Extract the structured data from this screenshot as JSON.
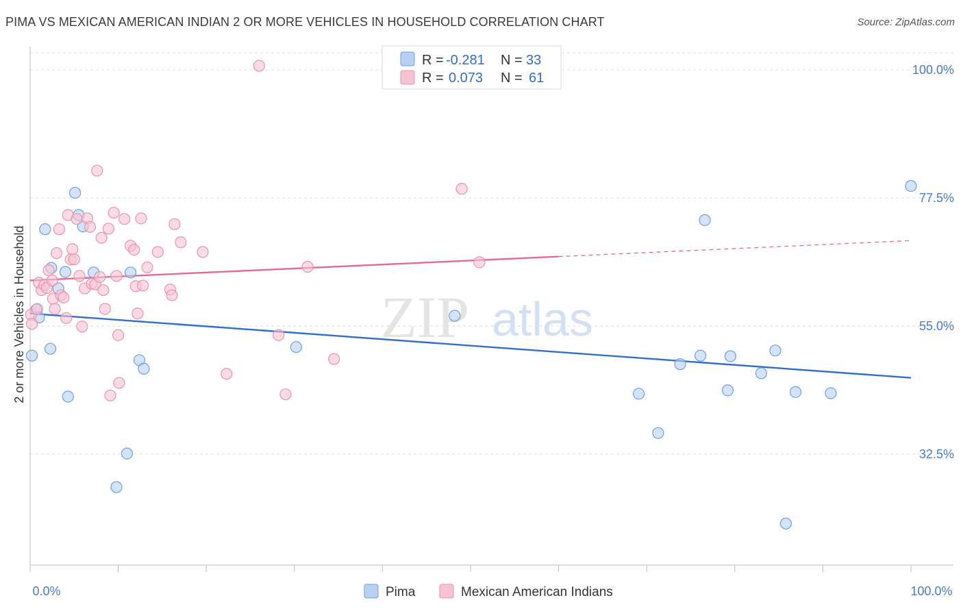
{
  "title": "PIMA VS MEXICAN AMERICAN INDIAN 2 OR MORE VEHICLES IN HOUSEHOLD CORRELATION CHART",
  "source": "Source: ZipAtlas.com",
  "watermark": {
    "zip": "ZIP",
    "atlas": "atlas"
  },
  "legend": {
    "r_label": "R =",
    "n_label": "N =",
    "rows": [
      {
        "r": "-0.281",
        "n": "33"
      },
      {
        "r": "0.073",
        "n": "61"
      }
    ]
  },
  "colors": {
    "pima_fill": "#b8d0f2",
    "pima_stroke": "#6f9ee0",
    "pima_line": "#2f6fc9",
    "mexican_fill": "#f7c3d2",
    "mexican_stroke": "#e893ad",
    "mexican_line": "#e26a95",
    "tick_label": "#4a7bc8",
    "grid": "#dddddd"
  },
  "chart_data": {
    "type": "scatter",
    "title": "PIMA VS MEXICAN AMERICAN INDIAN 2 OR MORE VEHICLES IN HOUSEHOLD CORRELATION CHART",
    "xlabel": "",
    "ylabel": "2 or more Vehicles in Household",
    "xlim": [
      0,
      100
    ],
    "ylim": [
      13,
      103
    ],
    "x_tick_labels": [
      "0.0%",
      "100.0%"
    ],
    "y_ticks": [
      32.5,
      55.0,
      77.5,
      100.0
    ],
    "y_tick_labels": [
      "32.5%",
      "55.0%",
      "77.5%",
      "100.0%"
    ],
    "grid": true,
    "legend_position": "bottom",
    "series": [
      {
        "name": "Pima",
        "r": -0.281,
        "n": 33,
        "trend": {
          "x": [
            0,
            100
          ],
          "y": [
            57.2,
            45.9
          ]
        },
        "points": [
          {
            "x": 0.2,
            "y": 49.8
          },
          {
            "x": 0.7,
            "y": 57.9
          },
          {
            "x": 1.0,
            "y": 56.5
          },
          {
            "x": 1.7,
            "y": 72.0
          },
          {
            "x": 2.3,
            "y": 51.0
          },
          {
            "x": 2.4,
            "y": 65.2
          },
          {
            "x": 3.2,
            "y": 61.6
          },
          {
            "x": 4.0,
            "y": 64.5
          },
          {
            "x": 4.3,
            "y": 42.6
          },
          {
            "x": 5.1,
            "y": 78.4
          },
          {
            "x": 5.5,
            "y": 74.5
          },
          {
            "x": 6.0,
            "y": 72.5
          },
          {
            "x": 7.2,
            "y": 64.4
          },
          {
            "x": 9.8,
            "y": 26.7
          },
          {
            "x": 11.0,
            "y": 32.6
          },
          {
            "x": 11.4,
            "y": 64.4
          },
          {
            "x": 12.4,
            "y": 49.0
          },
          {
            "x": 12.9,
            "y": 47.5
          },
          {
            "x": 30.2,
            "y": 51.3
          },
          {
            "x": 48.2,
            "y": 56.8
          },
          {
            "x": 69.1,
            "y": 43.1
          },
          {
            "x": 71.3,
            "y": 36.2
          },
          {
            "x": 73.8,
            "y": 48.3
          },
          {
            "x": 76.1,
            "y": 49.8
          },
          {
            "x": 76.6,
            "y": 73.6
          },
          {
            "x": 79.5,
            "y": 49.7
          },
          {
            "x": 79.2,
            "y": 43.7
          },
          {
            "x": 83.0,
            "y": 46.7
          },
          {
            "x": 84.6,
            "y": 50.7
          },
          {
            "x": 85.8,
            "y": 20.3
          },
          {
            "x": 86.9,
            "y": 43.4
          },
          {
            "x": 90.9,
            "y": 43.2
          },
          {
            "x": 100.0,
            "y": 79.6
          }
        ]
      },
      {
        "name": "Mexican American Indians",
        "r": 0.073,
        "n": 61,
        "trend": {
          "x": [
            0,
            60
          ],
          "y": [
            63.0,
            67.2
          ]
        },
        "trend_dashed": {
          "x": [
            60,
            100
          ],
          "y": [
            67.2,
            70.0
          ]
        },
        "points": [
          {
            "x": 0.1,
            "y": 57.0
          },
          {
            "x": 0.2,
            "y": 55.4
          },
          {
            "x": 0.8,
            "y": 58.0
          },
          {
            "x": 1.0,
            "y": 62.6
          },
          {
            "x": 1.3,
            "y": 61.3
          },
          {
            "x": 1.6,
            "y": 62.2
          },
          {
            "x": 1.9,
            "y": 61.7
          },
          {
            "x": 2.1,
            "y": 64.8
          },
          {
            "x": 2.5,
            "y": 63.0
          },
          {
            "x": 2.6,
            "y": 59.8
          },
          {
            "x": 2.8,
            "y": 58.0
          },
          {
            "x": 3.0,
            "y": 67.8
          },
          {
            "x": 3.3,
            "y": 72.0
          },
          {
            "x": 3.5,
            "y": 60.4
          },
          {
            "x": 3.8,
            "y": 60.0
          },
          {
            "x": 4.1,
            "y": 56.4
          },
          {
            "x": 4.3,
            "y": 74.5
          },
          {
            "x": 4.6,
            "y": 66.7
          },
          {
            "x": 4.8,
            "y": 68.5
          },
          {
            "x": 5.0,
            "y": 66.7
          },
          {
            "x": 5.3,
            "y": 73.8
          },
          {
            "x": 5.6,
            "y": 63.8
          },
          {
            "x": 5.9,
            "y": 54.9
          },
          {
            "x": 6.2,
            "y": 61.6
          },
          {
            "x": 6.5,
            "y": 73.9
          },
          {
            "x": 6.8,
            "y": 72.4
          },
          {
            "x": 7.0,
            "y": 62.4
          },
          {
            "x": 7.4,
            "y": 62.3
          },
          {
            "x": 7.6,
            "y": 82.3
          },
          {
            "x": 7.9,
            "y": 63.6
          },
          {
            "x": 8.1,
            "y": 70.5
          },
          {
            "x": 8.3,
            "y": 61.3
          },
          {
            "x": 8.5,
            "y": 58.0
          },
          {
            "x": 8.9,
            "y": 72.1
          },
          {
            "x": 9.1,
            "y": 42.8
          },
          {
            "x": 9.5,
            "y": 74.9
          },
          {
            "x": 9.8,
            "y": 63.8
          },
          {
            "x": 10.0,
            "y": 53.4
          },
          {
            "x": 10.1,
            "y": 45.0
          },
          {
            "x": 10.7,
            "y": 73.8
          },
          {
            "x": 11.4,
            "y": 69.1
          },
          {
            "x": 11.8,
            "y": 68.4
          },
          {
            "x": 12.0,
            "y": 62.0
          },
          {
            "x": 12.2,
            "y": 57.2
          },
          {
            "x": 12.6,
            "y": 73.9
          },
          {
            "x": 12.8,
            "y": 62.1
          },
          {
            "x": 13.3,
            "y": 65.3
          },
          {
            "x": 14.5,
            "y": 68.0
          },
          {
            "x": 15.9,
            "y": 61.4
          },
          {
            "x": 16.1,
            "y": 60.4
          },
          {
            "x": 16.4,
            "y": 72.9
          },
          {
            "x": 17.1,
            "y": 69.7
          },
          {
            "x": 19.6,
            "y": 68.0
          },
          {
            "x": 22.3,
            "y": 46.6
          },
          {
            "x": 26.0,
            "y": 100.7
          },
          {
            "x": 28.2,
            "y": 53.4
          },
          {
            "x": 29.0,
            "y": 43.0
          },
          {
            "x": 31.5,
            "y": 65.4
          },
          {
            "x": 34.5,
            "y": 49.2
          },
          {
            "x": 49.0,
            "y": 79.1
          },
          {
            "x": 51.0,
            "y": 66.2
          }
        ]
      }
    ]
  },
  "bottom_legend": [
    "Pima",
    "Mexican American Indians"
  ]
}
